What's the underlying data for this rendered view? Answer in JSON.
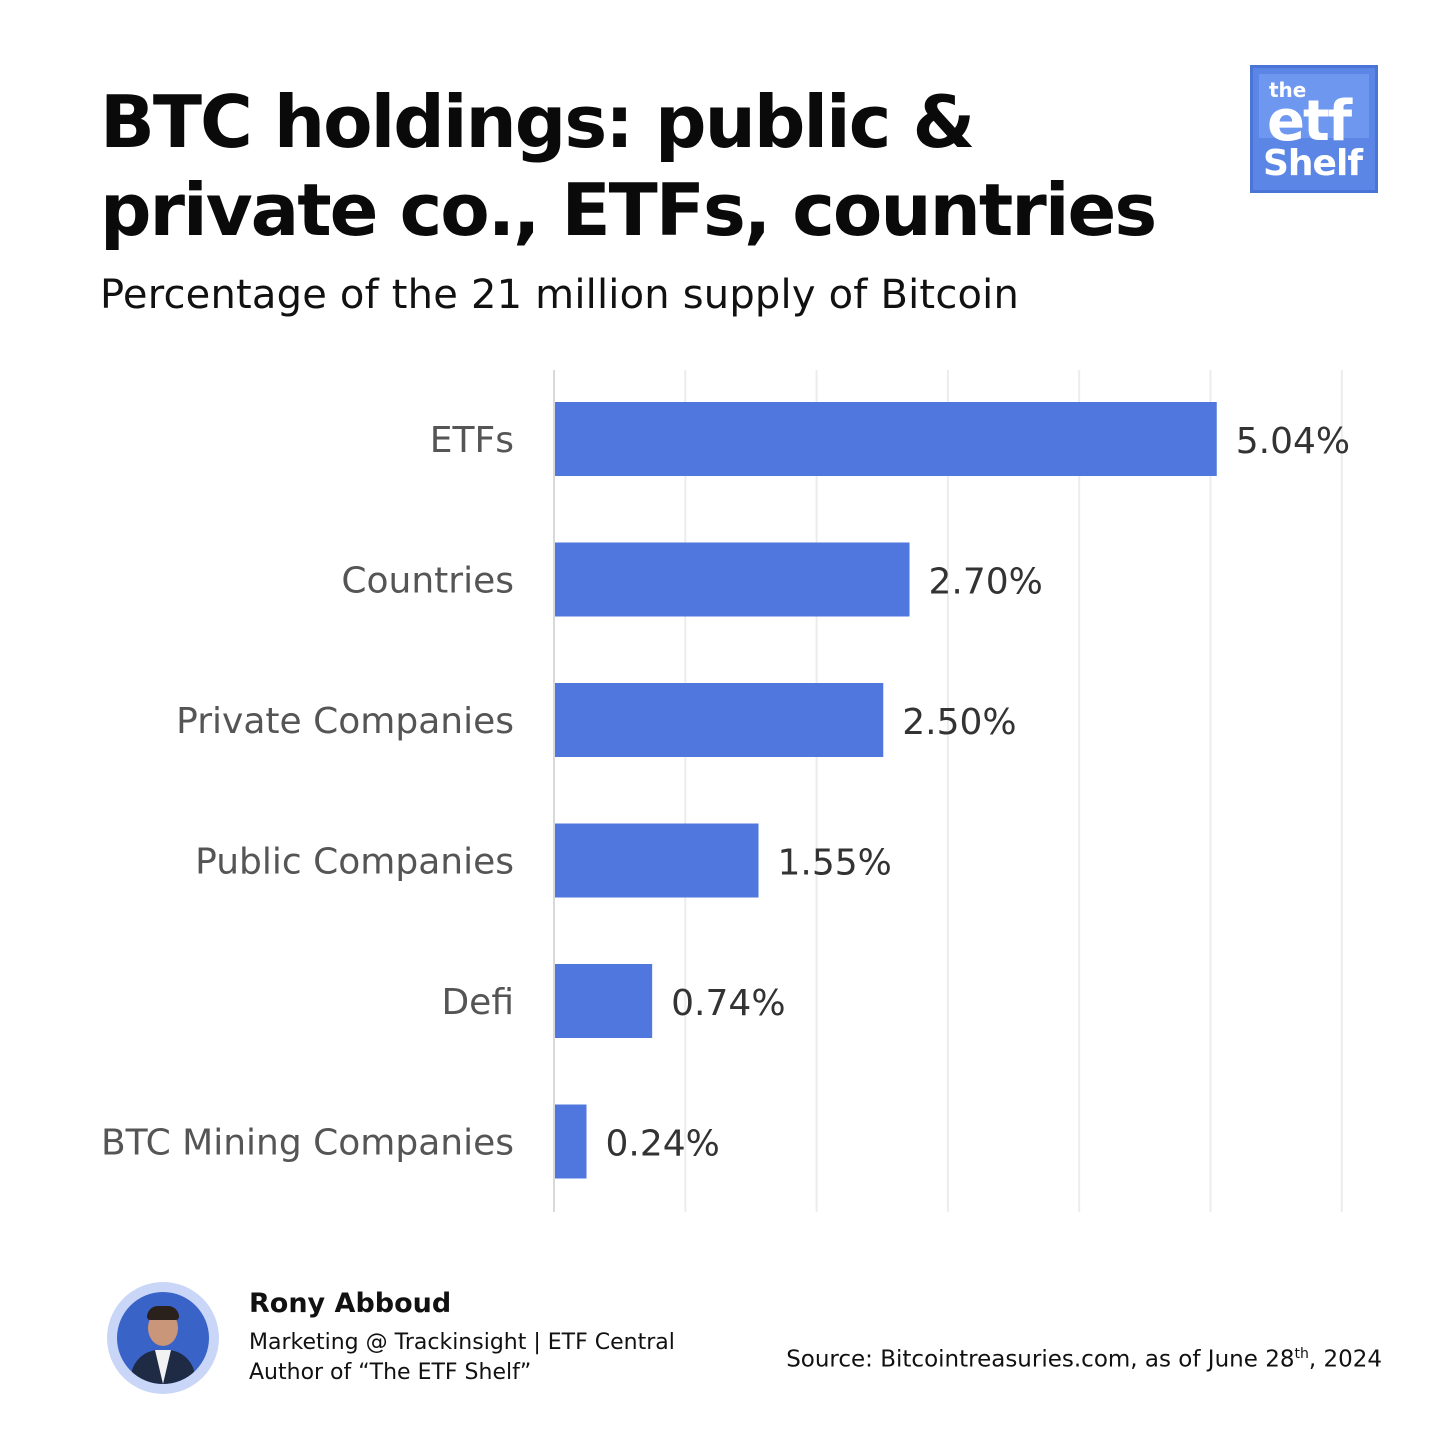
{
  "header": {
    "title": "BTC holdings: public & private co., ETFs, countries",
    "subtitle": "Percentage of the 21 million supply of Bitcoin"
  },
  "logo": {
    "the": "the",
    "etf": "etf",
    "shelf": "Shelf",
    "color": "#5b86e6"
  },
  "chart_data": {
    "type": "bar",
    "orientation": "horizontal",
    "categories": [
      "ETFs",
      "Countries",
      "Private Companies",
      "Public Companies",
      "Defi",
      "BTC Mining Companies"
    ],
    "values": [
      5.04,
      2.7,
      2.5,
      1.55,
      0.74,
      0.24
    ],
    "value_labels": [
      "5.04%",
      "2.70%",
      "2.50%",
      "1.55%",
      "0.74%",
      "0.24%"
    ],
    "xlim": [
      0,
      6
    ],
    "grid": true,
    "bar_color": "#4f77dd",
    "title": "",
    "xlabel": "",
    "ylabel": ""
  },
  "footer": {
    "author_name": "Rony Abboud",
    "author_line1": "Marketing @ Trackinsight | ETF Central",
    "author_line2": "Author of “The ETF Shelf”",
    "source_prefix": "Source: Bitcointreasuries.com, as of June 28",
    "source_sup": "th",
    "source_suffix": ", 2024"
  }
}
